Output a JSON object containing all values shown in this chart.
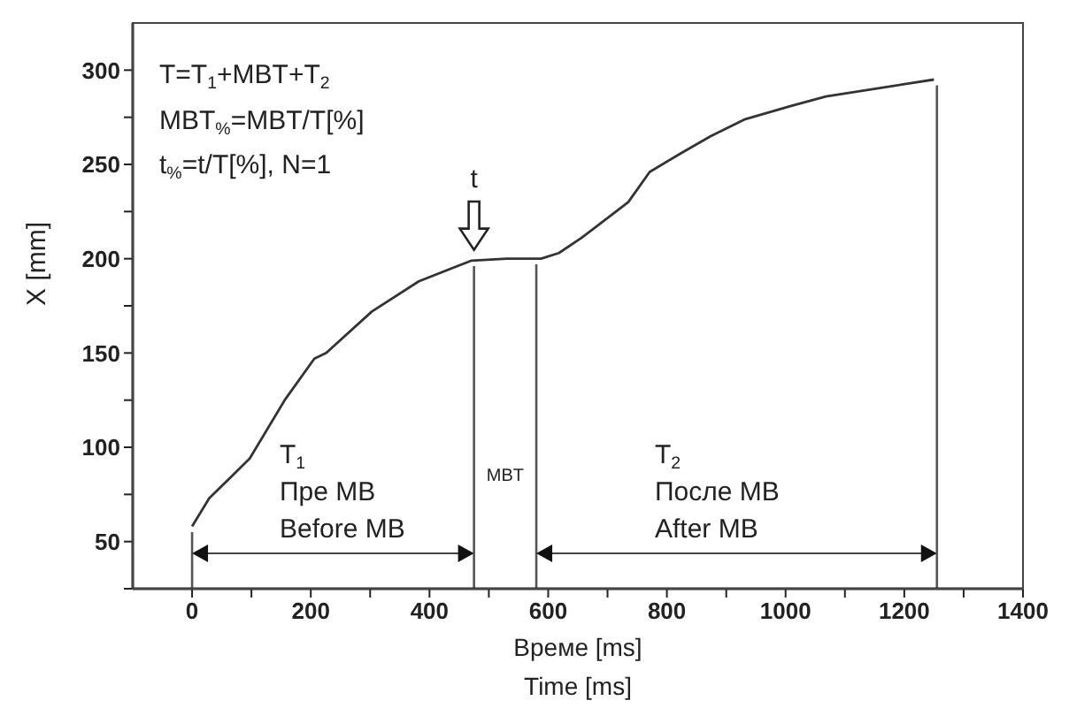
{
  "chart_data": {
    "type": "line",
    "xlabel": "Време [ms]\nTime [ms]",
    "ylabel": "X [mm]",
    "x": [
      0,
      29,
      97,
      156,
      206,
      226,
      303,
      382,
      471,
      530,
      588,
      618,
      656,
      735,
      771,
      824,
      874,
      932,
      1009,
      1068,
      1168,
      1250
    ],
    "series": [
      {
        "color": "#333333",
        "values": [
          58,
          73,
          94,
          125,
          147,
          150,
          172,
          188,
          199,
          200,
          200,
          203,
          211,
          230,
          246,
          256,
          265,
          274,
          281,
          286,
          291,
          295
        ]
      }
    ],
    "xlim": [
      -100,
      1400
    ],
    "xticks": [
      0,
      {
        "value": 100,
        "label": null
      },
      200,
      {
        "value": 300,
        "label": null
      },
      400,
      {
        "value": 500,
        "label": null
      },
      600,
      {
        "value": 700,
        "label": null
      },
      800,
      {
        "value": 900,
        "label": null
      },
      1000,
      {
        "value": 1100,
        "label": null
      },
      1200,
      {
        "value": 1300,
        "label": null
      },
      1400
    ],
    "ylim": [
      25,
      325
    ],
    "yticks": [
      {
        "value": 25,
        "label": null
      },
      50,
      {
        "value": 75,
        "label": null
      },
      100,
      {
        "value": 125,
        "label": null
      },
      150,
      {
        "value": 175,
        "label": null
      },
      200,
      {
        "value": 225,
        "label": null
      },
      250,
      {
        "value": 275,
        "label": null
      },
      300
    ],
    "grid": false,
    "marker": "none",
    "line_style": "solid",
    "ref_lines": [
      {
        "axis": "x",
        "value": 0,
        "color": "#555555"
      },
      {
        "axis": "x",
        "value": 475,
        "color": "#555555"
      },
      {
        "axis": "x",
        "value": 580,
        "color": "#555555"
      },
      {
        "axis": "x",
        "value": 1255,
        "color": "#555555"
      }
    ],
    "annotations": [
      "T=T$_{1}$+MBT+T$_{2}$",
      "MBT$_{%}$=MBT/T[%]",
      "t$_{%}$=t/T[%], N=1",
      {
        "text": "t",
        "x": 475,
        "y": 200
      },
      "T$_{1}$\nПре МВ\nBefore MB",
      "MBT",
      "T$_{2}$\nПосле МВ\nAfter MB"
    ]
  }
}
